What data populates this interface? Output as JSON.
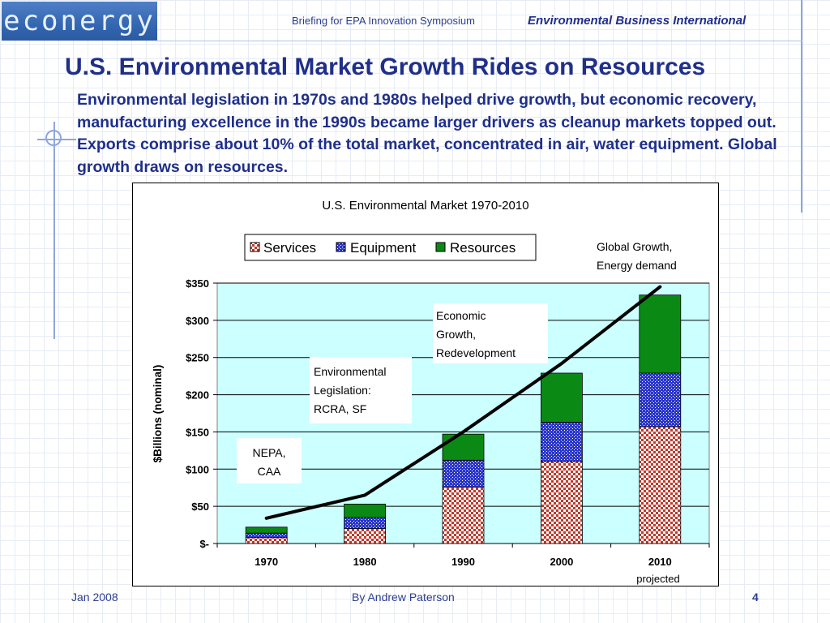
{
  "header": {
    "logo_text": "econergy",
    "subtitle": "Briefing for EPA Innovation Symposium",
    "org": "Environmental Business International"
  },
  "slide": {
    "title": "U.S. Environmental Market Growth Rides on Resources",
    "body": "Environmental legislation in 1970s and 1980s helped drive growth, but economic recovery, manufacturing excellence in the 1990s became larger drivers as cleanup markets topped out. Exports comprise about 10% of the total market, concentrated in air, water equipment.  Global growth draws on resources."
  },
  "chart_data": {
    "type": "bar",
    "stacked": true,
    "title": "U.S. Environmental Market 1970-2010",
    "ylabel": "$Billions (nominal)",
    "xlabel": "",
    "categories": [
      "1970",
      "1980",
      "1990",
      "2000",
      "2010"
    ],
    "category_note": "projected",
    "ylim": [
      0,
      350
    ],
    "yticks": [
      0,
      50,
      100,
      150,
      200,
      250,
      300,
      350
    ],
    "ytick_labels": [
      "$-",
      "$50",
      "$100",
      "$150",
      "$200",
      "$250",
      "$300",
      "$350"
    ],
    "grid": true,
    "legend_position": "top",
    "series": [
      {
        "name": "Services",
        "values": [
          8,
          20,
          76,
          110,
          157
        ],
        "color": "#c0392b"
      },
      {
        "name": "Equipment",
        "values": [
          6,
          15,
          36,
          53,
          72
        ],
        "color": "#2a36c8"
      },
      {
        "name": "Resources",
        "values": [
          8,
          18,
          35,
          66,
          105
        ],
        "color": "#0a8a14"
      }
    ],
    "trend_line": {
      "values": [
        34,
        65,
        150,
        242,
        345
      ],
      "color": "#000000"
    },
    "annotations": {
      "nepa": [
        "NEPA,",
        "CAA"
      ],
      "legislation": [
        "Environmental",
        "Legislation:",
        "RCRA, SF"
      ],
      "economic": [
        "Economic",
        "Growth,",
        "Redevelopment"
      ],
      "global": [
        "Global Growth,",
        "Energy demand"
      ]
    }
  },
  "footer": {
    "date": "Jan 2008",
    "author": "By Andrew Paterson",
    "page": "4"
  }
}
